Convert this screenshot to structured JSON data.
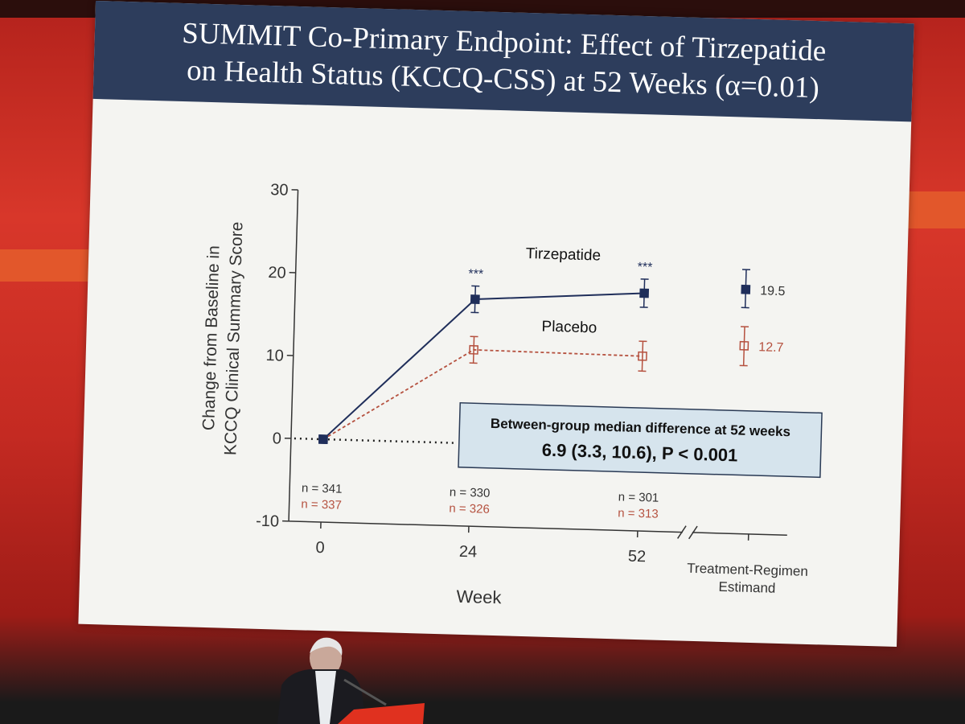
{
  "slide": {
    "title_line1": "SUMMIT Co-Primary Endpoint: Effect of Tirzepatide",
    "title_line2": "on Health Status (KCCQ-CSS) at 52 Weeks (α=0.01)"
  },
  "chart_data": {
    "type": "line",
    "ylabel_line1": "Change from Baseline in",
    "ylabel_line2": "KCCQ Clinical Summary Score",
    "xlabel": "Week",
    "ylim": [
      -10,
      30
    ],
    "yticks": [
      "30",
      "20",
      "10",
      "0",
      "-10"
    ],
    "x": [
      0,
      24,
      52
    ],
    "xtick_labels": [
      "0",
      "24",
      "52"
    ],
    "extra_xtick_label_line1": "Treatment-Regimen",
    "extra_xtick_label_line2": "Estimand",
    "series": [
      {
        "name": "Tirzepatide",
        "color": "#1f2e5a",
        "values": [
          0,
          17.4,
          18.7
        ],
        "err_low": [
          0,
          15.8,
          17.0
        ],
        "err_high": [
          0,
          19.0,
          20.4
        ],
        "significance": [
          "",
          "***",
          "***"
        ],
        "estimand_value": 19.5,
        "estimand_err_low": 17.3,
        "estimand_err_high": 21.9,
        "estimand_label": "19.5",
        "n_labels": [
          "n = 341",
          "n = 330",
          "n = 301"
        ]
      },
      {
        "name": "Placebo",
        "color": "#b5513f",
        "values": [
          0,
          11.3,
          11.1
        ],
        "err_low": [
          0,
          9.7,
          9.3
        ],
        "err_high": [
          0,
          12.9,
          12.9
        ],
        "significance": [
          "",
          "",
          ""
        ],
        "estimand_value": 12.7,
        "estimand_err_low": 10.3,
        "estimand_err_high": 15.0,
        "estimand_label": "12.7",
        "n_labels": [
          "n = 337",
          "n = 326",
          "n = 313"
        ]
      }
    ],
    "annotation": {
      "line1": "Between-group median difference at 52 weeks",
      "line2": "6.9 (3.3, 10.6), P < 0.001"
    }
  },
  "colors": {
    "header_bg": "#2d3d5c",
    "annotation_bg": "#d6e4ed",
    "stage_red": "#c42a22"
  }
}
